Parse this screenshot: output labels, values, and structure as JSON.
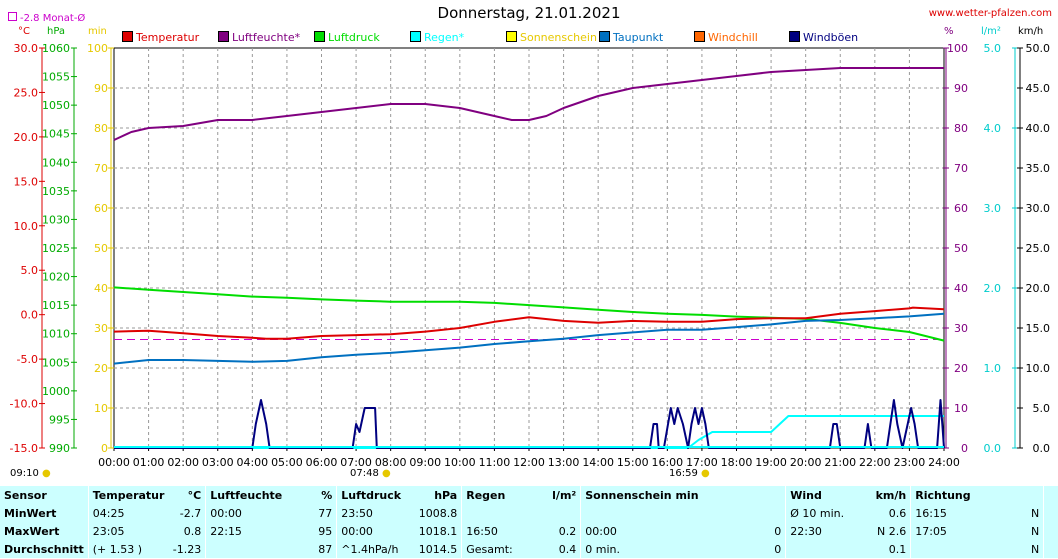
{
  "header": {
    "title": "Donnerstag, 21.01.2021",
    "site": "www.wetter-pfalzen.com",
    "avg_label": "-2.8 Monat-Ø"
  },
  "units": {
    "temp": "°C",
    "pressure": "hPa",
    "minutes": "min",
    "percent": "%",
    "rain": "l/m²",
    "wind": "km/h"
  },
  "legend": [
    {
      "label": "Temperatur",
      "color": "#dd0000"
    },
    {
      "label": "Luftfeuchte*",
      "color": "#800080"
    },
    {
      "label": "Luftdruck",
      "color": "#00dd00"
    },
    {
      "label": "Regen*",
      "color": "#00ffff"
    },
    {
      "label": "Sonnenschein",
      "color": "#ffff00"
    },
    {
      "label": "Taupunkt",
      "color": "#0070c0"
    },
    {
      "label": "Windchill",
      "color": "#ff6600"
    },
    {
      "label": "Windböen",
      "color": "#000080"
    }
  ],
  "marks": {
    "left_time": "09:10",
    "sunrise": "07:48",
    "sunset": "16:59"
  },
  "chart_data": {
    "type": "line",
    "x_ticks": [
      "00:00",
      "01:00",
      "02:00",
      "03:00",
      "04:00",
      "05:00",
      "06:00",
      "07:00",
      "08:00",
      "09:00",
      "10:00",
      "11:00",
      "12:00",
      "13:00",
      "14:00",
      "15:00",
      "16:00",
      "17:00",
      "18:00",
      "19:00",
      "20:00",
      "21:00",
      "22:00",
      "23:00",
      "24:00"
    ],
    "axes": {
      "temp": {
        "min": -15,
        "max": 30,
        "ticks": [
          "30.0",
          "25.0",
          "20.0",
          "15.0",
          "10.0",
          "5.0",
          "0.0",
          "-5.0",
          "-10.0",
          "-15.0"
        ],
        "color": "#dd0000"
      },
      "pressure": {
        "min": 990,
        "max": 1060,
        "ticks": [
          "1060",
          "1055",
          "1050",
          "1045",
          "1040",
          "1035",
          "1030",
          "1025",
          "1020",
          "1015",
          "1010",
          "1005",
          "1000",
          "995",
          "990"
        ],
        "color": "#00aa00"
      },
      "minutes": {
        "min": 0,
        "max": 100,
        "ticks": [
          "100",
          "90",
          "80",
          "70",
          "60",
          "50",
          "40",
          "30",
          "20",
          "10",
          "0"
        ],
        "color": "#e6c800"
      },
      "percent": {
        "min": 0,
        "max": 100,
        "ticks": [
          "100",
          "90",
          "80",
          "70",
          "60",
          "50",
          "40",
          "30",
          "20",
          "10",
          "0"
        ],
        "color": "#800080"
      },
      "rain": {
        "min": 0,
        "max": 5,
        "ticks": [
          "5.0",
          "4.0",
          "3.0",
          "2.0",
          "1.0",
          "0.0"
        ],
        "color": "#00cccc"
      },
      "wind": {
        "min": 0,
        "max": 50,
        "ticks": [
          "50.0",
          "45.0",
          "40.0",
          "35.0",
          "30.0",
          "25.0",
          "20.0",
          "15.0",
          "10.0",
          "5.0",
          "0.0"
        ],
        "color": "#000000"
      }
    },
    "month_avg_temp": -2.8,
    "series": [
      {
        "name": "Luftfeuchte*",
        "axis": "percent",
        "color": "#800080",
        "x": [
          0,
          0.5,
          1,
          2,
          3,
          4,
          5,
          6,
          7,
          8,
          9,
          10,
          11,
          11.5,
          12,
          12.5,
          13,
          14,
          15,
          16,
          17,
          18,
          19,
          20,
          21,
          22,
          23,
          24
        ],
        "y": [
          77,
          79,
          80,
          80.5,
          82,
          82,
          83,
          84,
          85,
          86,
          86,
          85,
          83,
          82,
          82,
          83,
          85,
          88,
          90,
          91,
          92,
          93,
          94,
          94.5,
          95,
          95,
          95,
          95
        ]
      },
      {
        "name": "Luftdruck",
        "axis": "pressure",
        "color": "#00dd00",
        "x": [
          0,
          1,
          2,
          3,
          4,
          5,
          6,
          7,
          8,
          9,
          10,
          11,
          12,
          13,
          14,
          15,
          16,
          17,
          18,
          19,
          20,
          21,
          22,
          23,
          24
        ],
        "y": [
          1018.1,
          1017.7,
          1017.3,
          1016.9,
          1016.5,
          1016.3,
          1016.0,
          1015.8,
          1015.6,
          1015.6,
          1015.6,
          1015.4,
          1015.0,
          1014.6,
          1014.2,
          1013.8,
          1013.5,
          1013.3,
          1013.0,
          1012.8,
          1012.6,
          1011.9,
          1011.0,
          1010.3,
          1008.8
        ]
      },
      {
        "name": "Temperatur",
        "axis": "temp",
        "color": "#dd0000",
        "x": [
          0,
          1,
          2,
          3,
          4,
          4.4,
          5,
          6,
          7,
          8,
          9,
          10,
          11,
          12,
          13,
          14,
          15,
          16,
          17,
          18,
          19,
          20,
          21,
          22,
          23,
          23.1,
          24
        ],
        "y": [
          -1.9,
          -1.8,
          -2.1,
          -2.4,
          -2.6,
          -2.7,
          -2.7,
          -2.4,
          -2.3,
          -2.2,
          -1.9,
          -1.5,
          -0.8,
          -0.3,
          -0.7,
          -0.9,
          -0.7,
          -0.8,
          -0.8,
          -0.5,
          -0.4,
          -0.4,
          0.1,
          0.4,
          0.7,
          0.8,
          0.6
        ]
      },
      {
        "name": "Taupunkt",
        "axis": "temp",
        "color": "#0070c0",
        "x": [
          0,
          1,
          2,
          3,
          4,
          5,
          6,
          7,
          8,
          9,
          10,
          11,
          12,
          13,
          14,
          15,
          16,
          17,
          18,
          19,
          20,
          21,
          22,
          23,
          24
        ],
        "y": [
          -5.5,
          -5.1,
          -5.1,
          -5.2,
          -5.3,
          -5.2,
          -4.8,
          -4.5,
          -4.3,
          -4.0,
          -3.7,
          -3.3,
          -3.0,
          -2.7,
          -2.3,
          -2.0,
          -1.7,
          -1.7,
          -1.4,
          -1.1,
          -0.7,
          -0.6,
          -0.4,
          -0.2,
          0.1
        ]
      },
      {
        "name": "Regen*",
        "axis": "rain",
        "color": "#00ffff",
        "x": [
          0,
          16.6,
          16.9,
          17.3,
          18,
          19,
          19.5,
          20,
          21,
          22,
          23,
          24
        ],
        "y": [
          0,
          0,
          0.1,
          0.2,
          0.2,
          0.2,
          0.4,
          0.4,
          0.4,
          0.4,
          0.4,
          0.4
        ]
      },
      {
        "name": "Windböen",
        "axis": "wind",
        "color": "#000080",
        "x": [
          0,
          4.0,
          4.1,
          4.25,
          4.4,
          4.5,
          6.9,
          7.0,
          7.1,
          7.25,
          7.4,
          7.55,
          7.6,
          15.5,
          15.6,
          15.7,
          15.75,
          15.9,
          16.1,
          16.2,
          16.3,
          16.45,
          16.6,
          16.7,
          16.8,
          16.9,
          17.0,
          17.1,
          17.2,
          20.7,
          20.8,
          20.9,
          21.0,
          21.7,
          21.8,
          21.9,
          22.35,
          22.45,
          22.55,
          22.65,
          22.8,
          22.95,
          23.05,
          23.15,
          23.25,
          23.8,
          23.85,
          23.9,
          23.95,
          24
        ],
        "y": [
          0,
          0,
          3,
          6,
          3,
          0,
          0,
          3,
          2,
          5,
          5,
          5,
          0,
          0,
          3,
          3,
          0,
          0,
          5,
          3,
          5,
          3,
          0,
          3,
          5,
          3,
          5,
          3,
          0,
          0,
          3,
          3,
          0,
          0,
          3,
          0,
          0,
          3,
          6,
          3,
          0,
          3,
          5,
          3,
          0,
          0,
          3,
          6,
          3,
          0
        ]
      }
    ]
  },
  "stats": {
    "headers": [
      "Sensor",
      "Temperatur",
      "°C",
      "Luftfeuchte",
      "%",
      "Luftdruck",
      "hPa",
      "Regen",
      "l/m²",
      "Sonnenschein min",
      "Wind",
      "km/h",
      "Richtung"
    ],
    "rows": [
      {
        "label": "MinWert",
        "temp_time": "04:25",
        "temp_val": "-2.7",
        "hum_time": "00:00",
        "hum_val": "77",
        "press_time": "23:50",
        "press_val": "1008.8",
        "rain_time": "",
        "rain_val": "",
        "sun_time": "",
        "sun_val": "",
        "wind_time": "Ø 10 min.",
        "wind_val": "0.6",
        "dir_time": "16:15",
        "dir_val": "N"
      },
      {
        "label": "MaxWert",
        "temp_time": "23:05",
        "temp_val": "0.8",
        "hum_time": "22:15",
        "hum_val": "95",
        "press_time": "00:00",
        "press_val": "1018.1",
        "rain_time": "16:50",
        "rain_val": "0.2",
        "sun_time": "00:00",
        "sun_val": "0",
        "wind_time": "22:30",
        "wind_val": "N 2.6",
        "dir_time": "17:05",
        "dir_val": "N"
      },
      {
        "label": "Durchschnitt",
        "temp_time": "(+ 1.53 )",
        "temp_val": "-1.23",
        "hum_time": "",
        "hum_val": "87",
        "press_time": "^1.4hPa/h",
        "press_val": "1014.5",
        "rain_time": "Gesamt:",
        "rain_val": "0.4",
        "sun_time": "0 min.",
        "sun_val": "0",
        "wind_time": "",
        "wind_val": "0.1",
        "dir_time": "",
        "dir_val": "N"
      }
    ]
  }
}
